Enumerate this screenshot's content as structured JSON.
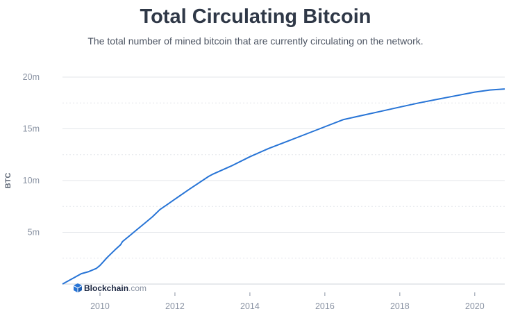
{
  "chart_data": {
    "type": "line",
    "title": "Total Circulating Bitcoin",
    "subtitle": "The total number of mined bitcoin that are currently circulating on the network.",
    "ylabel": "BTC",
    "xlabel": "",
    "y_tick_labels": [
      "5m",
      "10m",
      "15m",
      "20m"
    ],
    "y_tick_values": [
      5000000,
      10000000,
      15000000,
      20000000
    ],
    "x_tick_labels": [
      "2010",
      "2012",
      "2014",
      "2016",
      "2018",
      "2020"
    ],
    "x_tick_values": [
      2010,
      2012,
      2014,
      2016,
      2018,
      2020
    ],
    "xlim": [
      2009.0,
      2020.8
    ],
    "ylim": [
      0,
      20000000
    ],
    "grid": true,
    "series": [
      {
        "color": "#2774d6",
        "x": [
          2009.0,
          2009.3,
          2009.5,
          2009.7,
          2009.9,
          2010.0,
          2010.2,
          2010.4,
          2010.55,
          2010.6,
          2010.8,
          2011.0,
          2011.2,
          2011.4,
          2011.6,
          2011.8,
          2012.0,
          2012.4,
          2012.9,
          2013.0,
          2013.5,
          2014.0,
          2014.5,
          2015.0,
          2015.5,
          2016.0,
          2016.5,
          2017.0,
          2017.5,
          2018.0,
          2018.5,
          2019.0,
          2019.5,
          2020.0,
          2020.4,
          2020.8
        ],
        "y": [
          0,
          600000,
          1000000,
          1200000,
          1500000,
          1800000,
          2600000,
          3300000,
          3800000,
          4100000,
          4700000,
          5300000,
          5900000,
          6500000,
          7200000,
          7700000,
          8200000,
          9200000,
          10400000,
          10600000,
          11400000,
          12300000,
          13100000,
          13800000,
          14500000,
          15200000,
          15900000,
          16300000,
          16700000,
          17100000,
          17500000,
          17850000,
          18200000,
          18550000,
          18750000,
          18850000
        ]
      }
    ]
  },
  "brand": {
    "logo_text": "Blockchain",
    "logo_suffix": ".com",
    "icon": "blockchain-cube-icon",
    "color": "#1a2540",
    "suffix_color": "#8a93a3",
    "icon_color": "#2774d6"
  },
  "colors": {
    "grid": "#e3e6ea",
    "line": "#2774d6",
    "axis_text": "#8a93a3"
  }
}
